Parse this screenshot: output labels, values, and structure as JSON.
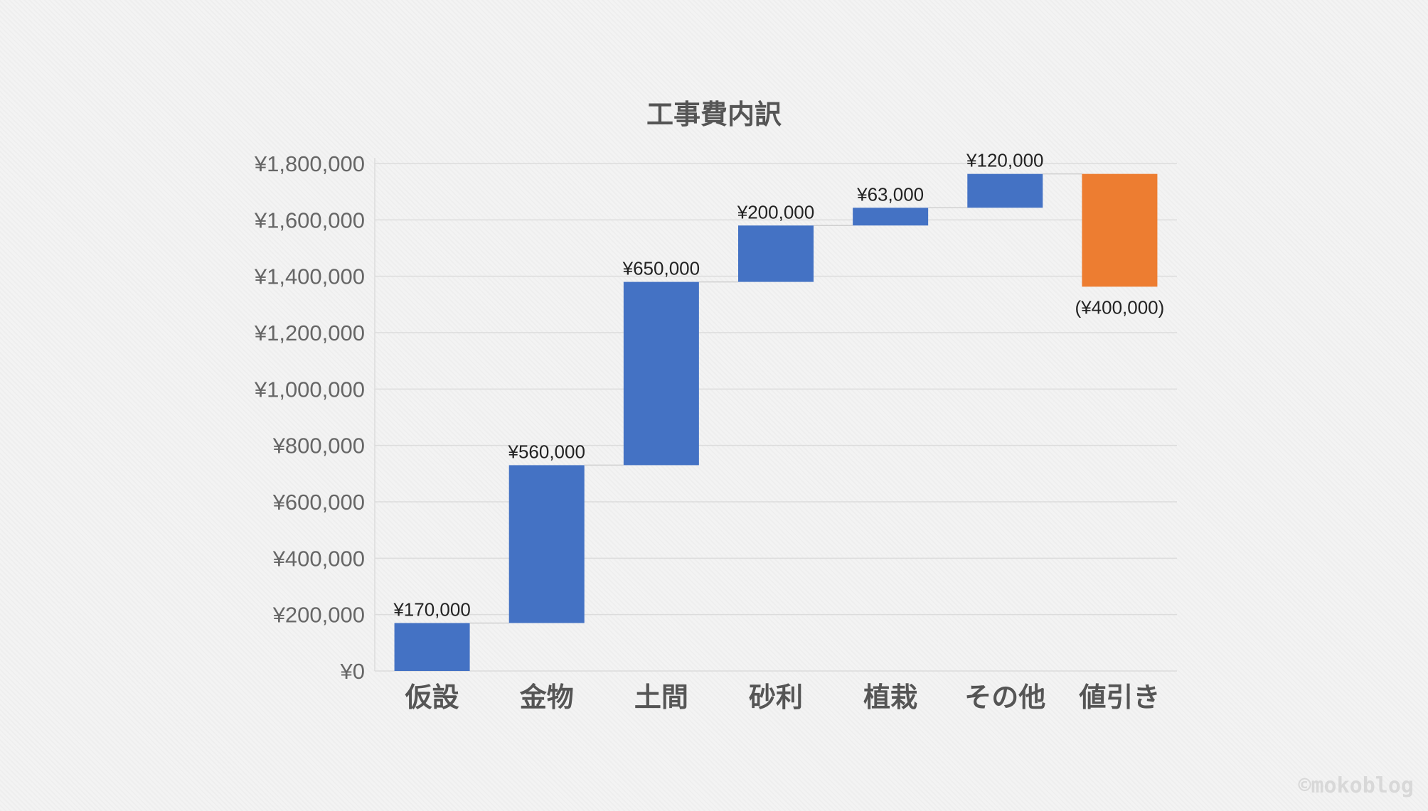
{
  "chart_data": {
    "type": "waterfall",
    "title": "工事費内訳",
    "categories": [
      "仮設",
      "金物",
      "土間",
      "砂利",
      "植栽",
      "その他",
      "値引き"
    ],
    "values": [
      170000,
      560000,
      650000,
      200000,
      63000,
      120000,
      -400000
    ],
    "data_labels": [
      "¥170,000",
      "¥560,000",
      "¥650,000",
      "¥200,000",
      "¥63,000",
      "¥120,000",
      "(¥400,000)"
    ],
    "ylim": [
      0,
      1800000
    ],
    "yticks": [
      0,
      200000,
      400000,
      600000,
      800000,
      1000000,
      1200000,
      1400000,
      1600000,
      1800000
    ],
    "ytick_labels": [
      "¥0",
      "¥200,000",
      "¥400,000",
      "¥600,000",
      "¥800,000",
      "¥1,000,000",
      "¥1,200,000",
      "¥1,400,000",
      "¥1,600,000",
      "¥1,800,000"
    ],
    "grid": true,
    "colors": {
      "increase": "#4472c4",
      "decrease": "#ed7d31",
      "grid": "#dcdcdc",
      "connector": "#d0d0d0"
    }
  },
  "watermark": "©mokoblog"
}
